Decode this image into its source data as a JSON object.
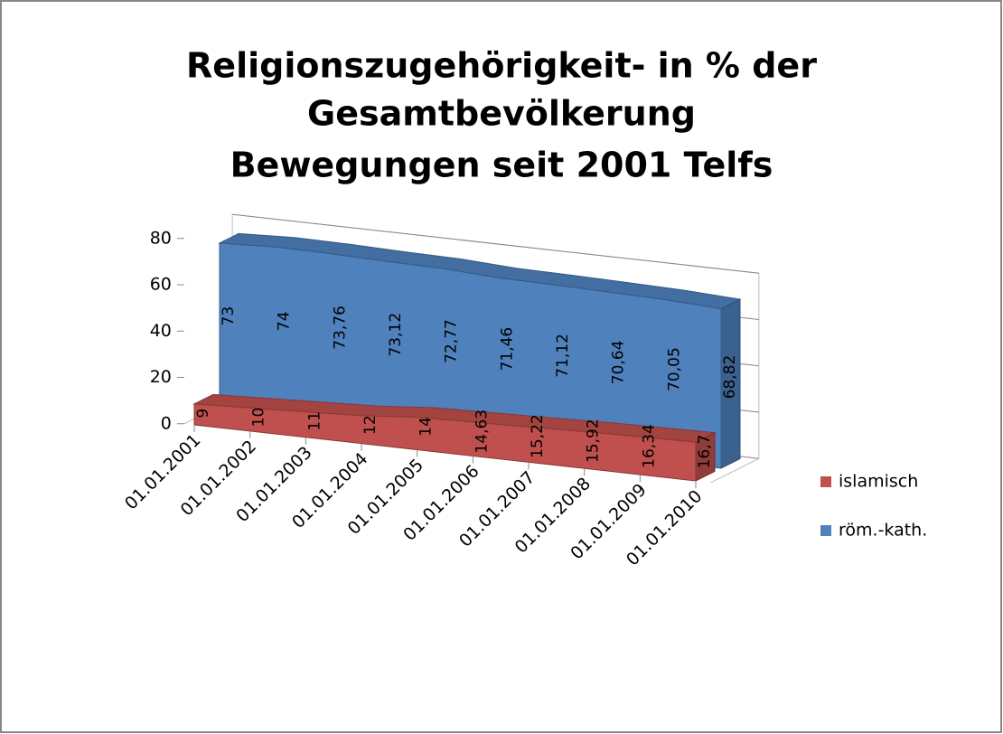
{
  "chart_data": {
    "type": "area3d",
    "title": [
      "Religionszugehörigkeit- in % der",
      "Gesamtbevölkerung",
      "Bewegungen seit 2001 Telfs"
    ],
    "categories": [
      "01.01.2001",
      "01.01.2002",
      "01.01.2003",
      "01.01.2004",
      "01.01.2005",
      "01.01.2006",
      "01.01.2007",
      "01.01.2008",
      "01.01.2009",
      "01.01.2010"
    ],
    "series": [
      {
        "name": "islamisch",
        "color": "#c0504d",
        "values": [
          9,
          10,
          11,
          12,
          14,
          14.63,
          15.22,
          15.92,
          16.34,
          16.7
        ],
        "value_labels": [
          "9",
          "10",
          "11",
          "12",
          "14",
          "14,63",
          "15,22",
          "15,92",
          "16,34",
          "16,7"
        ]
      },
      {
        "name": "röm.-kath.",
        "color": "#4f81bd",
        "values": [
          73,
          74,
          73.76,
          73.12,
          72.77,
          71.46,
          71.12,
          70.64,
          70.05,
          68.82
        ],
        "value_labels": [
          "73",
          "74",
          "73,76",
          "73,12",
          "72,77",
          "71,46",
          "71,12",
          "70,64",
          "70,05",
          "68,82"
        ]
      }
    ],
    "ylim": [
      0,
      80
    ],
    "yticks": [
      0,
      20,
      40,
      60,
      80
    ],
    "grid": true,
    "legend": "right"
  }
}
